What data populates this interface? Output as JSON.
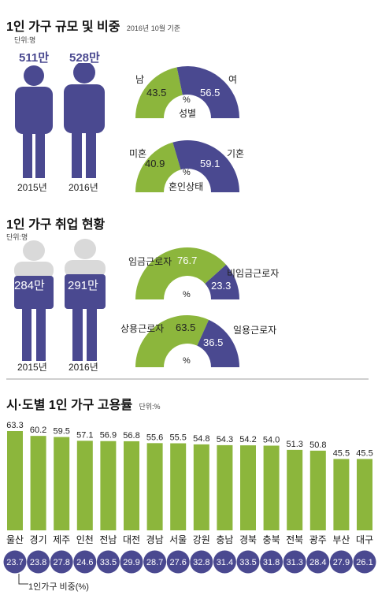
{
  "section1": {
    "title": "1인 가구 규모 및 비중",
    "date_note": "2016년 10월 기준",
    "unit": "단위:명",
    "people": [
      {
        "year": "2015년",
        "count": "511만"
      },
      {
        "year": "2016년",
        "count": "528만"
      }
    ],
    "gender": {
      "left_label": "남",
      "right_label": "여",
      "left": "43.5",
      "right": "56.5",
      "pct": "%",
      "caption": "성별"
    },
    "marital": {
      "left_label": "미혼",
      "right_label": "기혼",
      "left": "40.9",
      "right": "59.1",
      "pct": "%",
      "caption": "혼인상태"
    }
  },
  "section2": {
    "title": "1인 가구 취업 현황",
    "unit": "단위:명",
    "people": [
      {
        "year": "2015년",
        "count": "284만"
      },
      {
        "year": "2016년",
        "count": "291만"
      }
    ],
    "wage": {
      "left_label": "임금근로자",
      "right_label": "비임금근로자",
      "left": "76.7",
      "right": "23.3",
      "pct": "%"
    },
    "regular": {
      "left_label": "상용근로자",
      "right_label": "일용근로자",
      "left": "63.5",
      "right": "36.5",
      "pct": "%"
    }
  },
  "section3": {
    "title": "시·도별 1인 가구 고용률",
    "unit": "단위:%",
    "legend": "1인가구 비중(%)"
  },
  "colors": {
    "green": "#8cb63c",
    "navy": "#4a4990",
    "gray": "#d9d9d9"
  },
  "chart_data": {
    "type": "bar",
    "title": "시·도별 1인 가구 고용률",
    "categories": [
      "울산",
      "경기",
      "제주",
      "인천",
      "전남",
      "대전",
      "경남",
      "서울",
      "강원",
      "충남",
      "경북",
      "충북",
      "전북",
      "광주",
      "부산",
      "대구"
    ],
    "values": [
      63.3,
      60.2,
      59.5,
      57.1,
      56.9,
      56.8,
      55.6,
      55.5,
      54.8,
      54.3,
      54.2,
      54.0,
      51.3,
      50.8,
      45.5,
      45.5
    ],
    "value_labels": [
      "63.3",
      "60.2",
      "59.5",
      "57.1",
      "56.9",
      "56.8",
      "55.6",
      "55.5",
      "54.8",
      "54.3",
      "54.2",
      "54.0",
      "51.3",
      "50.8",
      "45.5",
      "45.5"
    ],
    "share_labels": [
      "23.7",
      "23.8",
      "27.8",
      "24.6",
      "33.5",
      "29.9",
      "28.7",
      "27.6",
      "32.8",
      "31.4",
      "33.5",
      "31.8",
      "31.3",
      "28.4",
      "27.9",
      "26.1"
    ],
    "unit": "%"
  }
}
